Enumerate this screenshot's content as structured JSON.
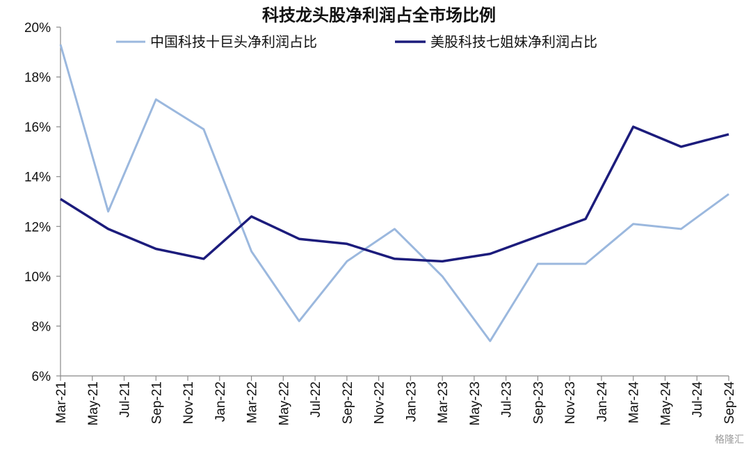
{
  "chart_data": {
    "type": "line",
    "title": "科技龙头股净利润占全市场比例",
    "xlabel": "",
    "ylabel": "",
    "ylim": [
      6,
      20
    ],
    "y_ticks": [
      6,
      8,
      10,
      12,
      14,
      16,
      18,
      20
    ],
    "y_tick_suffix": "%",
    "x_tick_labels": [
      "Mar-21",
      "May-21",
      "Jul-21",
      "Sep-21",
      "Nov-21",
      "Jan-22",
      "Mar-22",
      "May-22",
      "Jul-22",
      "Sep-22",
      "Nov-22",
      "Jan-23",
      "Mar-23",
      "May-23",
      "Jul-23",
      "Sep-23",
      "Nov-23",
      "Jan-24",
      "Mar-24",
      "May-24",
      "Jul-24",
      "Sep-24"
    ],
    "x": [
      "Mar-21",
      "Jun-21",
      "Sep-21",
      "Dec-21",
      "Mar-22",
      "Jun-22",
      "Sep-22",
      "Dec-22",
      "Mar-23",
      "Jun-23",
      "Sep-23",
      "Dec-23",
      "Mar-24",
      "Jun-24",
      "Sep-24"
    ],
    "series": [
      {
        "name": "中国科技十巨头净利润占比",
        "color": "#9bb8de",
        "values": [
          19.3,
          12.6,
          17.1,
          15.9,
          11.0,
          8.2,
          10.6,
          11.9,
          10.0,
          7.4,
          10.5,
          10.5,
          12.1,
          11.9,
          13.3
        ]
      },
      {
        "name": "美股科技七姐妹净利润占比",
        "color": "#1c1c7c",
        "values": [
          13.1,
          11.9,
          11.1,
          10.7,
          12.4,
          11.5,
          11.3,
          10.7,
          10.6,
          10.9,
          11.6,
          12.3,
          16.0,
          15.2,
          15.7
        ]
      }
    ],
    "legend": "top",
    "grid": false
  },
  "watermark": "格隆汇"
}
